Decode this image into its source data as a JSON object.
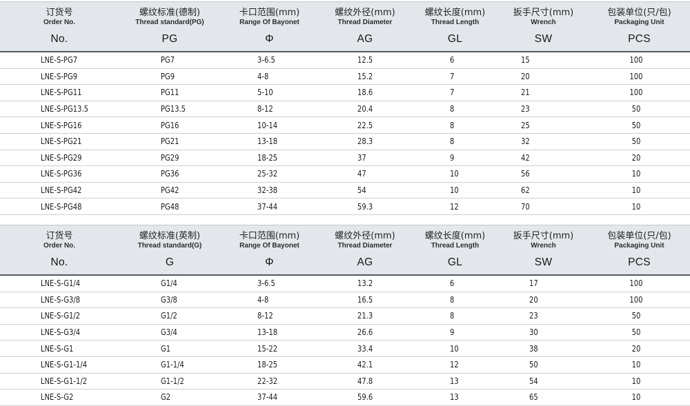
{
  "colors": {
    "header_bg": "#e3e7eb",
    "header_rule": "#55585b",
    "row_line": "#cbcfd3",
    "text": "#1d1d1d"
  },
  "tables": [
    {
      "name": "PG thread (German standard) specifications",
      "columns": [
        {
          "zh": "订货号",
          "en": "Order No.",
          "code": "No."
        },
        {
          "zh": "螺纹标准(德制)",
          "en": "Thread standard(PG)",
          "code": "PG"
        },
        {
          "zh": "卡口范围(mm)",
          "en": "Range Of Bayonet",
          "code": "Φ"
        },
        {
          "zh": "螺纹外径(mm)",
          "en": "Thread Diameter",
          "code": "AG"
        },
        {
          "zh": "螺纹长度(mm)",
          "en": "Thread Length",
          "code": "GL"
        },
        {
          "zh": "扳手尺寸(mm)",
          "en": "Wrench",
          "code": "SW"
        },
        {
          "zh": "包装单位(只/包)",
          "en": "Packaging Unit",
          "code": "PCS"
        }
      ],
      "rows": [
        [
          "LNE-S-PG7",
          "PG7",
          "3-6.5",
          "12.5",
          "6",
          "15",
          "100"
        ],
        [
          "LNE-S-PG9",
          "PG9",
          "4-8",
          "15.2",
          "7",
          "20",
          "100"
        ],
        [
          "LNE-S-PG11",
          "PG11",
          "5-10",
          "18.6",
          "7",
          "21",
          "100"
        ],
        [
          "LNE-S-PG13.5",
          "PG13.5",
          "8-12",
          "20.4",
          "8",
          "23",
          "50"
        ],
        [
          "LNE-S-PG16",
          "PG16",
          "10-14",
          "22.5",
          "8",
          "25",
          "50"
        ],
        [
          "LNE-S-PG21",
          "PG21",
          "13-18",
          "28.3",
          "8",
          "32",
          "50"
        ],
        [
          "LNE-S-PG29",
          "PG29",
          "18-25",
          "37",
          "9",
          "42",
          "20"
        ],
        [
          "LNE-S-PG36",
          "PG36",
          "25-32",
          "47",
          "10",
          "56",
          "10"
        ],
        [
          "LNE-S-PG42",
          "PG42",
          "32-38",
          "54",
          "10",
          "62",
          "10"
        ],
        [
          "LNE-S-PG48",
          "PG48",
          "37-44",
          "59.3",
          "12",
          "70",
          "10"
        ]
      ]
    },
    {
      "name": "G thread (British standard) specifications",
      "columns": [
        {
          "zh": "订货号",
          "en": "Order No.",
          "code": "No."
        },
        {
          "zh": "螺纹标准(英制)",
          "en": "Thread standard(G)",
          "code": "G"
        },
        {
          "zh": "卡口范围(mm)",
          "en": "Range Of Bayonet",
          "code": "Φ"
        },
        {
          "zh": "螺纹外径(mm)",
          "en": "Thread Diameter",
          "code": "AG"
        },
        {
          "zh": "螺纹长度(mm)",
          "en": "Thread Length",
          "code": "GL"
        },
        {
          "zh": "扳手尺寸(mm)",
          "en": "Wrench",
          "code": "SW"
        },
        {
          "zh": "包装单位(只/包)",
          "en": "Packaging Unit",
          "code": "PCS"
        }
      ],
      "rows": [
        [
          "LNE-S-G1/4",
          "G1/4",
          "3-6.5",
          "13.2",
          "6",
          "17",
          "100"
        ],
        [
          "LNE-S-G3/8",
          "G3/8",
          "4-8",
          "16.5",
          "8",
          "20",
          "100"
        ],
        [
          "LNE-S-G1/2",
          "G1/2",
          "8-12",
          "21.3",
          "8",
          "23",
          "50"
        ],
        [
          "LNE-S-G3/4",
          "G3/4",
          "13-18",
          "26.6",
          "9",
          "30",
          "50"
        ],
        [
          "LNE-S-G1",
          "G1",
          "15-22",
          "33.4",
          "10",
          "38",
          "20"
        ],
        [
          "LNE-S-G1-1/4",
          "G1-1/4",
          "18-25",
          "42.1",
          "12",
          "50",
          "10"
        ],
        [
          "LNE-S-G1-1/2",
          "G1-1/2",
          "22-32",
          "47.8",
          "13",
          "54",
          "10"
        ],
        [
          "LNE-S-G2",
          "G2",
          "37-44",
          "59.6",
          "13",
          "65",
          "10"
        ]
      ]
    }
  ]
}
